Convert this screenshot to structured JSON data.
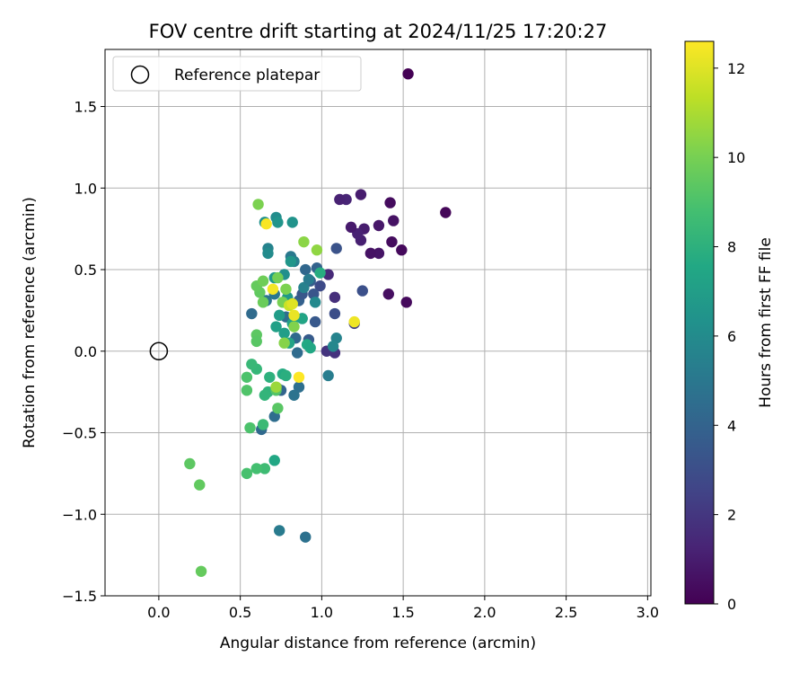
{
  "chart_data": {
    "type": "scatter",
    "title": "FOV centre drift starting at 2024/11/25 17:20:27",
    "xlabel": "Angular distance from reference (arcmin)",
    "ylabel": "Rotation from reference (arcmin)",
    "xlim": [
      -0.33,
      3.02
    ],
    "ylim": [
      -1.5,
      1.85
    ],
    "xticks": [
      0.0,
      0.5,
      1.0,
      1.5,
      2.0,
      2.5,
      3.0
    ],
    "xtick_labels": [
      "0.0",
      "0.5",
      "1.0",
      "1.5",
      "2.0",
      "2.5",
      "3.0"
    ],
    "yticks": [
      -1.5,
      -1.0,
      -0.5,
      0.0,
      0.5,
      1.0,
      1.5
    ],
    "ytick_labels": [
      "−1.5",
      "−1.0",
      "−0.5",
      "0.0",
      "0.5",
      "1.0",
      "1.5"
    ],
    "grid": true,
    "legend": {
      "position": "top-left",
      "entries": [
        "Reference platepar"
      ]
    },
    "reference_point": {
      "x": 0.0,
      "y": 0.0
    },
    "colorbar": {
      "label": "Hours from first FF file",
      "colormap": "viridis",
      "range": [
        0,
        12.6
      ],
      "ticks": [
        0,
        2,
        4,
        6,
        8,
        10,
        12
      ],
      "tick_labels": [
        "0",
        "2",
        "4",
        "6",
        "8",
        "10",
        "12"
      ]
    },
    "series": [
      {
        "points": [
          [
            1.53,
            1.7,
            0.0
          ],
          [
            1.76,
            0.85,
            0.2
          ],
          [
            1.52,
            0.3,
            0.3
          ],
          [
            1.41,
            0.35,
            0.5
          ],
          [
            1.49,
            0.62,
            0.3
          ],
          [
            1.43,
            0.67,
            0.4
          ],
          [
            1.44,
            0.8,
            0.6
          ],
          [
            1.42,
            0.91,
            0.4
          ],
          [
            1.35,
            0.6,
            0.7
          ],
          [
            1.3,
            0.6,
            0.6
          ],
          [
            1.35,
            0.77,
            0.8
          ],
          [
            1.26,
            0.75,
            1.0
          ],
          [
            1.24,
            0.68,
            1.1
          ],
          [
            1.22,
            0.72,
            1.2
          ],
          [
            1.18,
            0.76,
            0.9
          ],
          [
            1.24,
            0.96,
            1.0
          ],
          [
            1.15,
            0.93,
            1.3
          ],
          [
            1.11,
            0.93,
            1.2
          ],
          [
            1.04,
            0.47,
            1.5
          ],
          [
            1.08,
            0.33,
            1.7
          ],
          [
            1.08,
            -0.01,
            1.8
          ],
          [
            1.03,
            0.0,
            1.9
          ],
          [
            1.2,
            0.17,
            2.4
          ],
          [
            1.08,
            0.23,
            3.0
          ],
          [
            1.25,
            0.37,
            3.1
          ],
          [
            1.09,
            0.63,
            3.2
          ],
          [
            0.99,
            0.4,
            2.8
          ],
          [
            0.95,
            0.35,
            3.3
          ],
          [
            0.96,
            0.18,
            3.5
          ],
          [
            0.92,
            0.07,
            3.6
          ],
          [
            0.88,
            0.2,
            3.8
          ],
          [
            0.86,
            0.31,
            3.9
          ],
          [
            0.88,
            0.35,
            3.4
          ],
          [
            0.93,
            0.43,
            3.7
          ],
          [
            0.97,
            0.51,
            4.0
          ],
          [
            0.9,
            0.5,
            4.2
          ],
          [
            0.84,
            0.08,
            4.3
          ],
          [
            0.85,
            -0.01,
            4.4
          ],
          [
            0.78,
            0.21,
            4.5
          ],
          [
            0.73,
            -0.23,
            4.2
          ],
          [
            0.75,
            -0.24,
            4.1
          ],
          [
            0.86,
            -0.22,
            4.6
          ],
          [
            0.83,
            -0.27,
            4.8
          ],
          [
            0.71,
            -0.4,
            4.5
          ],
          [
            0.63,
            -0.48,
            4.3
          ],
          [
            0.57,
            0.23,
            4.4
          ],
          [
            0.66,
            0.31,
            4.9
          ],
          [
            0.71,
            0.35,
            5.0
          ],
          [
            0.81,
            0.58,
            5.1
          ],
          [
            0.83,
            0.55,
            5.4
          ],
          [
            0.74,
            -1.1,
            5.2
          ],
          [
            0.9,
            -1.14,
            4.7
          ],
          [
            1.04,
            -0.15,
            5.3
          ],
          [
            1.09,
            0.08,
            5.6
          ],
          [
            1.07,
            0.03,
            5.8
          ],
          [
            0.96,
            0.3,
            5.9
          ],
          [
            0.89,
            0.39,
            5.5
          ],
          [
            0.92,
            0.44,
            5.2
          ],
          [
            0.67,
            0.63,
            5.6
          ],
          [
            0.67,
            0.6,
            6.0
          ],
          [
            0.72,
            0.82,
            6.1
          ],
          [
            0.65,
            0.79,
            6.3
          ],
          [
            0.73,
            0.79,
            6.5
          ],
          [
            0.82,
            0.79,
            6.4
          ],
          [
            0.81,
            0.55,
            6.6
          ],
          [
            0.77,
            0.47,
            6.2
          ],
          [
            0.71,
            0.45,
            6.8
          ],
          [
            0.79,
            0.33,
            6.7
          ],
          [
            0.74,
            0.22,
            6.9
          ],
          [
            0.72,
            0.15,
            7.1
          ],
          [
            0.77,
            0.11,
            7.0
          ],
          [
            0.8,
            0.05,
            7.3
          ],
          [
            0.82,
            0.17,
            7.2
          ],
          [
            0.88,
            0.2,
            7.4
          ],
          [
            0.91,
            0.04,
            7.6
          ],
          [
            0.93,
            0.02,
            7.5
          ],
          [
            0.99,
            0.48,
            7.8
          ],
          [
            0.71,
            -0.67,
            7.5
          ],
          [
            0.76,
            -0.14,
            7.7
          ],
          [
            0.78,
            -0.15,
            7.9
          ],
          [
            0.68,
            -0.16,
            8.0
          ],
          [
            0.67,
            -0.25,
            8.1
          ],
          [
            0.65,
            -0.27,
            8.2
          ],
          [
            0.6,
            -0.11,
            8.3
          ],
          [
            0.57,
            -0.08,
            8.4
          ],
          [
            0.64,
            -0.45,
            8.5
          ],
          [
            0.65,
            -0.72,
            8.6
          ],
          [
            0.6,
            -0.72,
            8.8
          ],
          [
            0.54,
            -0.75,
            8.9
          ],
          [
            0.56,
            -0.47,
            9.0
          ],
          [
            0.54,
            -0.24,
            9.1
          ],
          [
            0.54,
            -0.16,
            9.0
          ],
          [
            0.72,
            -0.24,
            9.2
          ],
          [
            0.73,
            -0.35,
            9.3
          ],
          [
            0.6,
            0.1,
            9.4
          ],
          [
            0.6,
            0.06,
            9.3
          ],
          [
            0.62,
            0.36,
            9.5
          ],
          [
            0.6,
            0.4,
            9.6
          ],
          [
            0.64,
            0.3,
            9.7
          ],
          [
            0.64,
            0.43,
            9.8
          ],
          [
            0.73,
            0.45,
            9.9
          ],
          [
            0.76,
            0.3,
            10.0
          ],
          [
            0.78,
            0.38,
            10.1
          ],
          [
            0.83,
            0.15,
            10.2
          ],
          [
            0.77,
            0.05,
            10.3
          ],
          [
            0.89,
            0.67,
            10.4
          ],
          [
            0.97,
            0.62,
            10.5
          ],
          [
            0.61,
            0.9,
            10.1
          ],
          [
            0.19,
            -0.69,
            9.4
          ],
          [
            0.25,
            -0.82,
            9.5
          ],
          [
            0.26,
            -1.35,
            9.6
          ],
          [
            0.72,
            -0.22,
            10.7
          ],
          [
            0.8,
            0.28,
            11.6
          ],
          [
            0.82,
            0.29,
            12.0
          ],
          [
            0.83,
            0.22,
            12.2
          ],
          [
            0.7,
            0.38,
            12.4
          ],
          [
            0.66,
            0.78,
            12.5
          ],
          [
            0.86,
            -0.16,
            12.6
          ],
          [
            1.2,
            0.18,
            12.3
          ]
        ]
      }
    ]
  }
}
